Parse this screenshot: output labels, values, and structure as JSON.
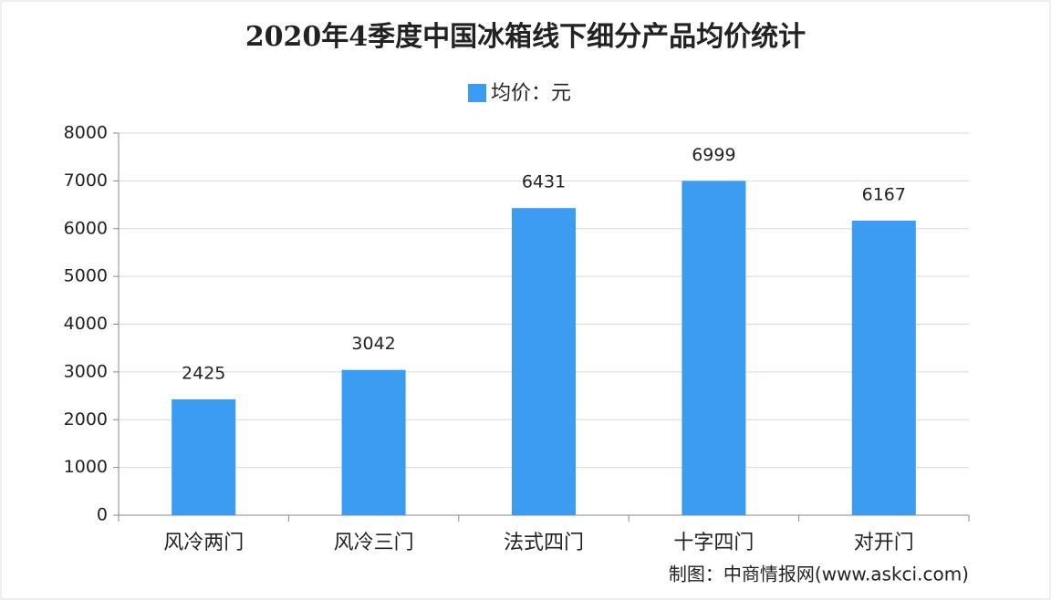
{
  "chart_data": {
    "type": "bar",
    "title": "2020年4季度中国冰箱线下细分产品均价统计",
    "series": [
      {
        "name": "均价：元",
        "color": "#3b9cf2",
        "values": [
          2425,
          3042,
          6431,
          6999,
          6167
        ]
      }
    ],
    "categories": [
      "风冷两门",
      "风冷三门",
      "法式四门",
      "十字四门",
      "对开门"
    ],
    "ylim": [
      0,
      8000
    ],
    "yticks": [
      0,
      1000,
      2000,
      3000,
      4000,
      5000,
      6000,
      7000,
      8000
    ],
    "grid": true,
    "source": "制图：中商情报网(www.askci.com)"
  }
}
